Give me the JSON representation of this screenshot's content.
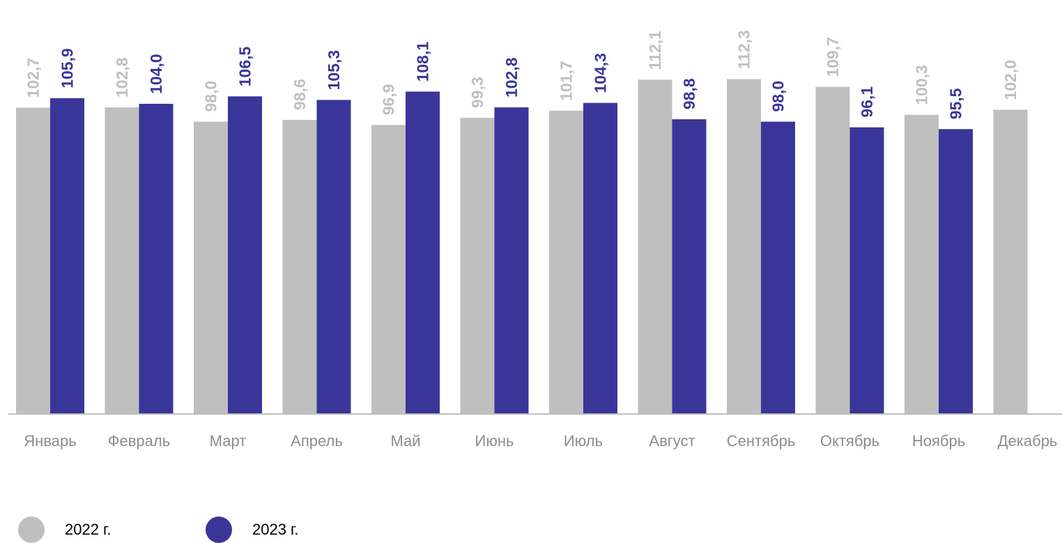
{
  "chart_data": {
    "type": "bar",
    "categories": [
      "Январь",
      "Февраль",
      "Март",
      "Апрель",
      "Май",
      "Июнь",
      "Июль",
      "Август",
      "Сентябрь",
      "Октябрь",
      "Ноябрь",
      "Декабрь"
    ],
    "series": [
      {
        "name": "2022 г.",
        "color": "#bfbfbf",
        "values": [
          102.7,
          102.8,
          98.0,
          98.6,
          96.9,
          99.3,
          101.7,
          112.1,
          112.3,
          109.7,
          100.3,
          102.0
        ],
        "labels": [
          "102,7",
          "102,8",
          "98,0",
          "98,6",
          "96,9",
          "99,3",
          "101,7",
          "112,1",
          "112,3",
          "109,7",
          "100,3",
          "102,0"
        ]
      },
      {
        "name": "2023 г.",
        "color": "#3a3699",
        "values": [
          105.9,
          104.0,
          106.5,
          105.3,
          108.1,
          102.8,
          104.3,
          98.8,
          98.0,
          96.1,
          95.5,
          null
        ],
        "labels": [
          "105,9",
          "104,0",
          "106,5",
          "105,3",
          "108,1",
          "102,8",
          "104,3",
          "98,8",
          "98,0",
          "96,1",
          "95,5",
          null
        ]
      }
    ],
    "ylim": [
      0,
      126
    ],
    "grid": false,
    "legend_position": "bottom-left"
  },
  "legend": [
    {
      "label": "2022 г.",
      "color": "#bfbfbf"
    },
    {
      "label": "2023 г.",
      "color": "#3a3699"
    }
  ]
}
